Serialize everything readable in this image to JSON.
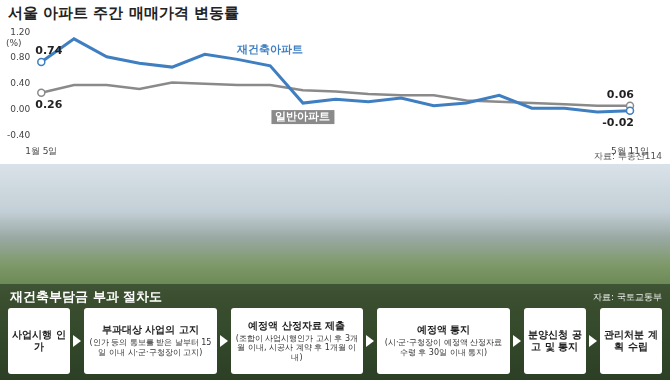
{
  "chart_data": {
    "type": "line",
    "title": "서울 아파트 주간 매매가격 변동률",
    "y_label": "(%)",
    "source": "자료: 부동산114",
    "categories": [
      "1월 5일",
      null,
      null,
      null,
      null,
      null,
      null,
      null,
      null,
      null,
      null,
      null,
      null,
      null,
      null,
      null,
      null,
      null,
      "5월 11일"
    ],
    "series": [
      {
        "name": "재건축아파트",
        "color": "#3f7fc1",
        "values": [
          0.74,
          1.1,
          0.82,
          0.72,
          0.66,
          0.86,
          0.78,
          0.68,
          0.1,
          0.16,
          0.12,
          0.18,
          0.06,
          0.1,
          0.22,
          0.02,
          0.02,
          -0.04,
          -0.02
        ],
        "value_labels": [
          "0.74",
          null,
          null,
          null,
          null,
          null,
          null,
          null,
          null,
          null,
          null,
          null,
          null,
          null,
          null,
          null,
          null,
          null,
          "-0.02"
        ]
      },
      {
        "name": "일반아파트",
        "color": "#8a8a8a",
        "values": [
          0.26,
          0.38,
          0.38,
          0.32,
          0.42,
          0.4,
          0.38,
          0.38,
          0.3,
          0.28,
          0.24,
          0.22,
          0.22,
          0.14,
          0.12,
          0.1,
          0.08,
          0.06,
          0.06
        ],
        "value_labels": [
          "0.26",
          null,
          null,
          null,
          null,
          null,
          null,
          null,
          null,
          null,
          null,
          null,
          null,
          null,
          null,
          null,
          null,
          null,
          "0.06"
        ]
      }
    ],
    "ylim": [
      -0.4,
      1.2
    ],
    "yticks": [
      {
        "value": -0.4,
        "label": "-0.40"
      },
      {
        "value": 0,
        "label": "0.00"
      },
      {
        "value": 0.4,
        "label": "0.40"
      },
      {
        "value": 0.8,
        "label": "0.80"
      },
      {
        "value": 1.2,
        "label": "1.20"
      }
    ],
    "grid": false,
    "legend": false
  },
  "diagram": {
    "title": "재건축부담금 부과 절차도",
    "source": "자료: 국토교통부",
    "steps": [
      {
        "label": "사업시행 인가"
      },
      {
        "label": "부과대상 사업의 고지",
        "note": "(인가 등의 통보를 받은 날부터 15일 이내 시·군·구청장이 고지)"
      },
      {
        "label": "예정액 산정자료 제출",
        "note": "(조합이 사업시행인가 고시 후 3개월 이내, 시공사 계약 후 1개월 이내)"
      },
      {
        "label": "예정액 통지",
        "note": "(시·군·구청장이 예정액 산정자료 수령 후 30일 이내 통지)"
      },
      {
        "label": "분양신청 공고 및 통지"
      },
      {
        "label": "관리처분 계획 수립"
      }
    ]
  }
}
